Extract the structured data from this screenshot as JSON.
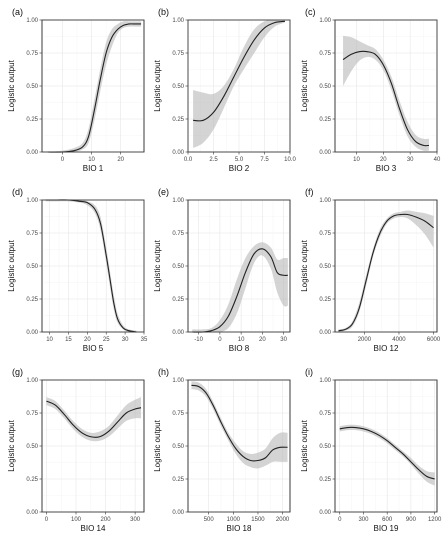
{
  "chart_data": [
    {
      "type": "line",
      "tag": "(a)",
      "xlabel": "BIO 1",
      "ylabel": "Logistic output",
      "xlim": [
        -7,
        28
      ],
      "ylim": [
        0,
        1
      ],
      "xticks": [
        0,
        10,
        20
      ],
      "xtick_labels": [
        "0",
        "10",
        "20"
      ],
      "yticks": [
        0,
        0.25,
        0.5,
        0.75,
        1
      ],
      "ytick_labels": [
        "0.00",
        "0.25",
        "0.50",
        "0.75",
        "1.00"
      ],
      "series": [
        {
          "x": [
            -5,
            0,
            4,
            7,
            9,
            11,
            13,
            15,
            17,
            19,
            21,
            23,
            25,
            27
          ],
          "y": [
            0.0,
            0.0,
            0.01,
            0.04,
            0.12,
            0.32,
            0.55,
            0.75,
            0.87,
            0.93,
            0.96,
            0.97,
            0.97,
            0.97
          ],
          "lower": [
            0.0,
            0.0,
            0.0,
            0.02,
            0.07,
            0.24,
            0.46,
            0.66,
            0.8,
            0.9,
            0.94,
            0.95,
            0.95,
            0.95
          ],
          "upper": [
            0.0,
            0.01,
            0.03,
            0.07,
            0.18,
            0.4,
            0.63,
            0.83,
            0.93,
            0.97,
            0.99,
            0.99,
            0.99,
            0.99
          ]
        }
      ]
    },
    {
      "type": "line",
      "tag": "(b)",
      "xlabel": "BIO 2",
      "ylabel": "Logistic output",
      "xlim": [
        0,
        10
      ],
      "ylim": [
        0,
        1
      ],
      "xticks": [
        0,
        2.5,
        5,
        7.5,
        10
      ],
      "xtick_labels": [
        "0.0",
        "2.5",
        "5.0",
        "7.5",
        "10.0"
      ],
      "yticks": [
        0,
        0.25,
        0.5,
        0.75,
        1
      ],
      "ytick_labels": [
        "0.00",
        "0.25",
        "0.50",
        "0.75",
        "1.00"
      ],
      "series": [
        {
          "x": [
            0.5,
            1.5,
            2.5,
            3.5,
            4.5,
            5.5,
            6.5,
            7.5,
            8.5,
            9.5
          ],
          "y": [
            0.24,
            0.24,
            0.3,
            0.42,
            0.57,
            0.72,
            0.85,
            0.94,
            0.98,
            0.99
          ],
          "lower": [
            0.03,
            0.07,
            0.17,
            0.33,
            0.5,
            0.63,
            0.75,
            0.87,
            0.95,
            0.98
          ],
          "upper": [
            0.47,
            0.45,
            0.44,
            0.5,
            0.63,
            0.8,
            0.93,
            0.99,
            1.0,
            1.0
          ]
        }
      ]
    },
    {
      "type": "line",
      "tag": "(c)",
      "xlabel": "BIO 3",
      "ylabel": "Logistic output",
      "xlim": [
        2,
        40
      ],
      "ylim": [
        0,
        1
      ],
      "xticks": [
        10,
        20,
        30,
        40
      ],
      "xtick_labels": [
        "10",
        "20",
        "30",
        "40"
      ],
      "yticks": [
        0,
        0.25,
        0.5,
        0.75,
        1
      ],
      "ytick_labels": [
        "0.00",
        "0.25",
        "0.50",
        "0.75",
        "1.00"
      ],
      "series": [
        {
          "x": [
            5,
            8,
            11,
            14,
            17,
            20,
            23,
            26,
            29,
            32,
            35,
            37
          ],
          "y": [
            0.7,
            0.74,
            0.76,
            0.76,
            0.74,
            0.66,
            0.52,
            0.33,
            0.17,
            0.08,
            0.05,
            0.05
          ],
          "lower": [
            0.5,
            0.61,
            0.69,
            0.72,
            0.7,
            0.62,
            0.47,
            0.28,
            0.12,
            0.04,
            0.01,
            0.01
          ],
          "upper": [
            0.88,
            0.87,
            0.84,
            0.81,
            0.78,
            0.7,
            0.57,
            0.39,
            0.23,
            0.13,
            0.1,
            0.1
          ]
        }
      ]
    },
    {
      "type": "line",
      "tag": "(d)",
      "xlabel": "BIO 5",
      "ylabel": "Logistic output",
      "xlim": [
        8,
        35
      ],
      "ylim": [
        0,
        1
      ],
      "xticks": [
        10,
        15,
        20,
        25,
        30,
        35
      ],
      "xtick_labels": [
        "10",
        "15",
        "20",
        "25",
        "30",
        "35"
      ],
      "yticks": [
        0,
        0.25,
        0.5,
        0.75,
        1
      ],
      "ytick_labels": [
        "0.00",
        "0.25",
        "0.50",
        "0.75",
        "1.00"
      ],
      "series": [
        {
          "x": [
            9,
            12,
            15,
            18,
            20,
            22,
            23.5,
            25,
            26,
            27,
            28,
            29.5,
            31,
            33
          ],
          "y": [
            1.0,
            1.0,
            1.0,
            0.99,
            0.98,
            0.93,
            0.82,
            0.58,
            0.4,
            0.22,
            0.1,
            0.03,
            0.01,
            0.0
          ],
          "lower": [
            0.99,
            0.99,
            0.99,
            0.98,
            0.96,
            0.9,
            0.77,
            0.52,
            0.34,
            0.17,
            0.07,
            0.02,
            0.0,
            0.0
          ],
          "upper": [
            1.0,
            1.0,
            1.0,
            1.0,
            0.99,
            0.96,
            0.87,
            0.64,
            0.46,
            0.28,
            0.14,
            0.05,
            0.02,
            0.01
          ]
        }
      ]
    },
    {
      "type": "line",
      "tag": "(e)",
      "xlabel": "BIO 8",
      "ylabel": "Logistic output",
      "xlim": [
        -15,
        33
      ],
      "ylim": [
        0,
        1
      ],
      "xticks": [
        -10,
        0,
        10,
        20,
        30
      ],
      "xtick_labels": [
        "-10",
        "0",
        "10",
        "20",
        "30"
      ],
      "yticks": [
        0,
        0.25,
        0.5,
        0.75,
        1
      ],
      "ytick_labels": [
        "0.00",
        "0.25",
        "0.50",
        "0.75",
        "1.00"
      ],
      "series": [
        {
          "x": [
            -13,
            -8,
            -4,
            0,
            4,
            8,
            12,
            16,
            20,
            24,
            27,
            30,
            32
          ],
          "y": [
            0.0,
            0.0,
            0.01,
            0.04,
            0.12,
            0.27,
            0.45,
            0.59,
            0.63,
            0.57,
            0.45,
            0.43,
            0.43
          ],
          "lower": [
            0.0,
            0.0,
            0.0,
            0.0,
            0.03,
            0.14,
            0.33,
            0.52,
            0.58,
            0.48,
            0.3,
            0.2,
            0.2
          ],
          "upper": [
            0.02,
            0.02,
            0.03,
            0.09,
            0.21,
            0.4,
            0.56,
            0.65,
            0.68,
            0.64,
            0.55,
            0.56,
            0.56
          ]
        }
      ]
    },
    {
      "type": "line",
      "tag": "(f)",
      "xlabel": "BIO 12",
      "ylabel": "Logistic output",
      "xlim": [
        300,
        6200
      ],
      "ylim": [
        0,
        1
      ],
      "xticks": [
        2000,
        4000,
        6000
      ],
      "xtick_labels": [
        "2000",
        "4000",
        "6000"
      ],
      "yticks": [
        0,
        0.25,
        0.5,
        0.75,
        1
      ],
      "ytick_labels": [
        "0.00",
        "0.25",
        "0.50",
        "0.75",
        "1.00"
      ],
      "series": [
        {
          "x": [
            500,
            900,
            1300,
            1700,
            2100,
            2500,
            2900,
            3300,
            3700,
            4100,
            4500,
            5000,
            5500,
            6000
          ],
          "y": [
            0.01,
            0.02,
            0.06,
            0.18,
            0.39,
            0.6,
            0.75,
            0.84,
            0.88,
            0.89,
            0.89,
            0.87,
            0.84,
            0.79
          ],
          "lower": [
            0.0,
            0.01,
            0.04,
            0.15,
            0.35,
            0.57,
            0.72,
            0.82,
            0.86,
            0.87,
            0.86,
            0.81,
            0.74,
            0.64
          ],
          "upper": [
            0.02,
            0.03,
            0.08,
            0.22,
            0.43,
            0.63,
            0.78,
            0.86,
            0.9,
            0.91,
            0.92,
            0.91,
            0.9,
            0.88
          ]
        }
      ]
    },
    {
      "type": "line",
      "tag": "(g)",
      "xlabel": "BIO 14",
      "ylabel": "Logistic output",
      "xlim": [
        -15,
        330
      ],
      "ylim": [
        0,
        1
      ],
      "xticks": [
        0,
        100,
        200,
        300
      ],
      "xtick_labels": [
        "0",
        "100",
        "200",
        "300"
      ],
      "yticks": [
        0,
        0.25,
        0.5,
        0.75,
        1
      ],
      "ytick_labels": [
        "0.00",
        "0.25",
        "0.50",
        "0.75",
        "1.00"
      ],
      "series": [
        {
          "x": [
            0,
            30,
            60,
            90,
            120,
            150,
            180,
            210,
            240,
            270,
            300,
            320
          ],
          "y": [
            0.84,
            0.81,
            0.74,
            0.66,
            0.6,
            0.57,
            0.57,
            0.61,
            0.68,
            0.75,
            0.78,
            0.79
          ],
          "lower": [
            0.81,
            0.78,
            0.71,
            0.63,
            0.57,
            0.54,
            0.54,
            0.57,
            0.63,
            0.69,
            0.71,
            0.71
          ],
          "upper": [
            0.87,
            0.84,
            0.77,
            0.69,
            0.63,
            0.6,
            0.61,
            0.65,
            0.73,
            0.81,
            0.85,
            0.87
          ]
        }
      ]
    },
    {
      "type": "line",
      "tag": "(h)",
      "xlabel": "BIO 18",
      "ylabel": "Logistic output",
      "xlim": [
        80,
        2150
      ],
      "ylim": [
        0,
        1
      ],
      "xticks": [
        500,
        1000,
        1500,
        2000
      ],
      "xtick_labels": [
        "500",
        "1000",
        "1500",
        "2000"
      ],
      "yticks": [
        0,
        0.25,
        0.5,
        0.75,
        1
      ],
      "ytick_labels": [
        "0.00",
        "0.25",
        "0.50",
        "0.75",
        "1.00"
      ],
      "series": [
        {
          "x": [
            150,
            300,
            450,
            600,
            750,
            900,
            1050,
            1200,
            1350,
            1500,
            1650,
            1800,
            1950,
            2100
          ],
          "y": [
            0.96,
            0.95,
            0.9,
            0.8,
            0.68,
            0.57,
            0.48,
            0.42,
            0.39,
            0.39,
            0.41,
            0.47,
            0.49,
            0.49
          ],
          "lower": [
            0.93,
            0.92,
            0.87,
            0.77,
            0.65,
            0.54,
            0.44,
            0.37,
            0.34,
            0.33,
            0.35,
            0.38,
            0.38,
            0.38
          ],
          "upper": [
            0.99,
            0.98,
            0.93,
            0.83,
            0.71,
            0.6,
            0.52,
            0.46,
            0.44,
            0.45,
            0.48,
            0.56,
            0.6,
            0.6
          ]
        }
      ]
    },
    {
      "type": "line",
      "tag": "(i)",
      "xlabel": "BIO 19",
      "ylabel": "Logistic output",
      "xlim": [
        -60,
        1230
      ],
      "ylim": [
        0,
        1
      ],
      "xticks": [
        0,
        300,
        600,
        900,
        1200
      ],
      "xtick_labels": [
        "0",
        "300",
        "600",
        "900",
        "1200"
      ],
      "yticks": [
        0,
        0.25,
        0.5,
        0.75,
        1
      ],
      "ytick_labels": [
        "0.00",
        "0.25",
        "0.50",
        "0.75",
        "1.00"
      ],
      "series": [
        {
          "x": [
            0,
            100,
            200,
            300,
            400,
            500,
            600,
            700,
            800,
            900,
            1000,
            1100,
            1200
          ],
          "y": [
            0.63,
            0.64,
            0.64,
            0.63,
            0.61,
            0.58,
            0.54,
            0.49,
            0.44,
            0.38,
            0.32,
            0.27,
            0.25
          ],
          "lower": [
            0.61,
            0.62,
            0.62,
            0.61,
            0.59,
            0.56,
            0.52,
            0.47,
            0.42,
            0.36,
            0.29,
            0.23,
            0.2
          ],
          "upper": [
            0.65,
            0.66,
            0.66,
            0.65,
            0.63,
            0.6,
            0.56,
            0.51,
            0.46,
            0.41,
            0.35,
            0.31,
            0.3
          ]
        }
      ]
    }
  ]
}
